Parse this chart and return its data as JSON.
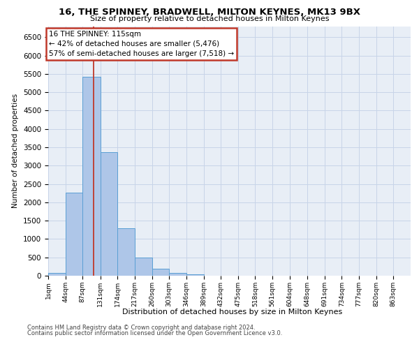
{
  "title_line1": "16, THE SPINNEY, BRADWELL, MILTON KEYNES, MK13 9BX",
  "title_line2": "Size of property relative to detached houses in Milton Keynes",
  "xlabel": "Distribution of detached houses by size in Milton Keynes",
  "ylabel": "Number of detached properties",
  "footer_line1": "Contains HM Land Registry data © Crown copyright and database right 2024.",
  "footer_line2": "Contains public sector information licensed under the Open Government Licence v3.0.",
  "annotation_line1": "16 THE SPINNEY: 115sqm",
  "annotation_line2": "← 42% of detached houses are smaller (5,476)",
  "annotation_line3": "57% of semi-detached houses are larger (7,518) →",
  "bar_color": "#aec6e8",
  "bar_edge_color": "#5a9fd4",
  "grid_color": "#c8d4e8",
  "background_color": "#e8eef6",
  "vline_color": "#c0392b",
  "vline_x": 115,
  "categories": [
    "1sqm",
    "44sqm",
    "87sqm",
    "131sqm",
    "174sqm",
    "217sqm",
    "260sqm",
    "303sqm",
    "346sqm",
    "389sqm",
    "432sqm",
    "475sqm",
    "518sqm",
    "561sqm",
    "604sqm",
    "648sqm",
    "691sqm",
    "734sqm",
    "777sqm",
    "820sqm",
    "863sqm"
  ],
  "bin_edges": [
    1,
    44,
    87,
    131,
    174,
    217,
    260,
    303,
    346,
    389,
    432,
    475,
    518,
    561,
    604,
    648,
    691,
    734,
    777,
    820,
    863,
    906
  ],
  "values": [
    75,
    2270,
    5430,
    3370,
    1290,
    490,
    190,
    80,
    35,
    0,
    0,
    0,
    0,
    0,
    0,
    0,
    0,
    0,
    0,
    0,
    0
  ],
  "ylim": [
    0,
    6800
  ],
  "yticks": [
    0,
    500,
    1000,
    1500,
    2000,
    2500,
    3000,
    3500,
    4000,
    4500,
    5000,
    5500,
    6000,
    6500
  ],
  "annotation_box_facecolor": "#ffffff",
  "annotation_box_edgecolor": "#c0392b"
}
